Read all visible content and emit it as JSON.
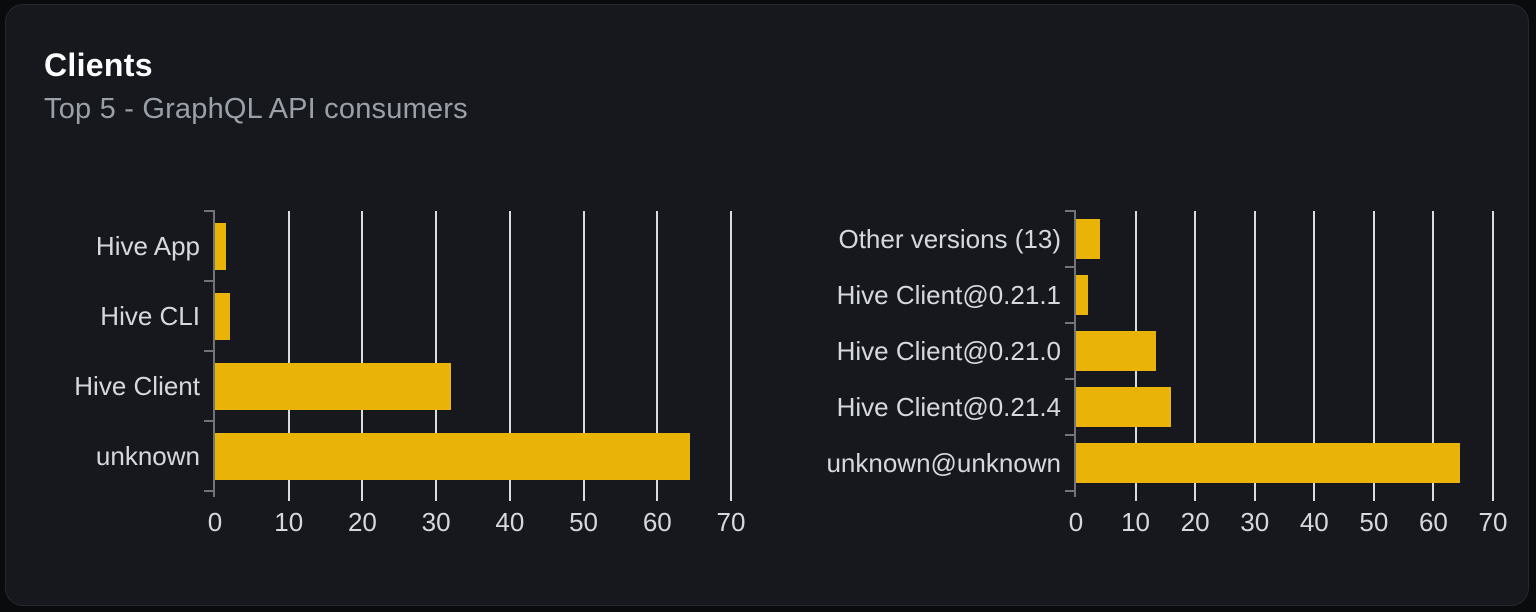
{
  "card": {
    "title": "Clients",
    "subtitle": "Top 5 - GraphQL API consumers"
  },
  "colors": {
    "bar": "#eab308",
    "card_background": "#16181d",
    "page_background": "#0a0b0d",
    "gridline": "#d9dce1",
    "axis": "#6f747a",
    "label_text": "#d5d8dc",
    "title_text": "#ffffff",
    "subtitle_text": "#9aa0a8"
  },
  "chart_data": [
    {
      "type": "bar",
      "orientation": "horizontal",
      "categories": [
        "Hive App",
        "Hive CLI",
        "Hive Client",
        "unknown"
      ],
      "values": [
        1.5,
        2,
        32,
        64.5
      ],
      "xticks": [
        0,
        10,
        20,
        30,
        40,
        50,
        60,
        70
      ],
      "xlim": [
        0,
        70
      ],
      "grid": true,
      "legend_position": "none"
    },
    {
      "type": "bar",
      "orientation": "horizontal",
      "categories": [
        "Other versions (13)",
        "Hive Client@0.21.1",
        "Hive Client@0.21.0",
        "Hive Client@0.21.4",
        "unknown@unknown"
      ],
      "values": [
        4,
        2,
        13.5,
        16,
        64.5
      ],
      "xticks": [
        0,
        10,
        20,
        30,
        40,
        50,
        60,
        70
      ],
      "xlim": [
        0,
        70
      ],
      "grid": true,
      "legend_position": "none"
    }
  ]
}
